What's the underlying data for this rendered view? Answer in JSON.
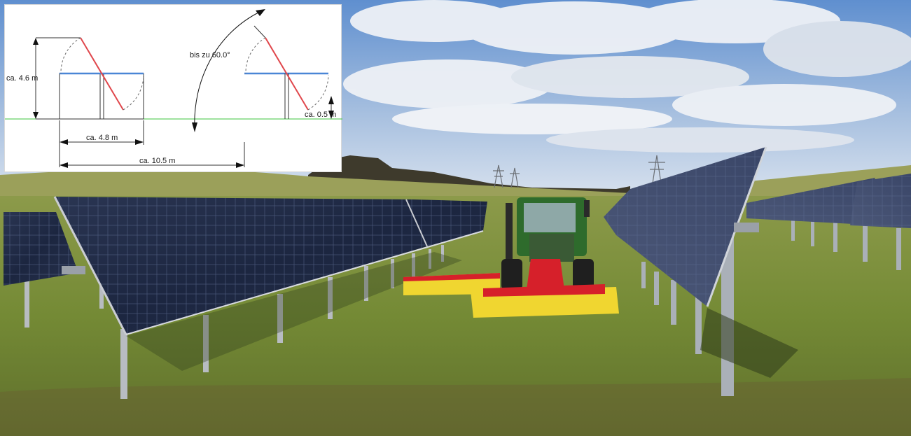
{
  "diagram": {
    "height_label": "ca. 4.6 m",
    "width_label": "ca. 4.8 m",
    "spacing_label": "ca. 10.5 m",
    "tilt_label": "bis zu 60.0°",
    "ground_clearance_label": "ca. 0.5 m"
  },
  "colors": {
    "ground_line": "#3cc43c",
    "panel_flat": "#4a86d6",
    "panel_tilted": "#e0474c",
    "sky": "#7fa6d8",
    "grass": "#7c8f3a"
  },
  "icons": {
    "tractor": "tractor-icon",
    "mower": "mower-icon",
    "solar_panel": "solar-panel-icon"
  }
}
